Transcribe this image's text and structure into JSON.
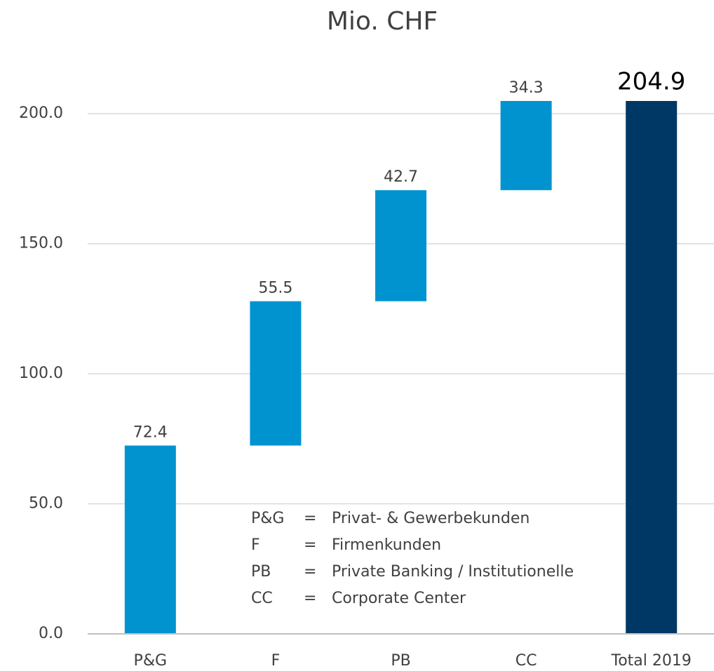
{
  "chart_data": {
    "type": "waterfall",
    "title": "Mio. CHF",
    "categories": [
      "P&G",
      "F",
      "PB",
      "CC",
      "Total 2019"
    ],
    "values": [
      72.4,
      55.5,
      42.7,
      34.3,
      204.9
    ],
    "measure": [
      "relative",
      "relative",
      "relative",
      "relative",
      "total"
    ],
    "color": "#0093d0",
    "total_color": "#003865",
    "ylim": [
      0,
      220
    ],
    "yticks": [
      {
        "value": 0,
        "label": "0.0"
      },
      {
        "value": 50,
        "label": "50.0"
      },
      {
        "value": 100,
        "label": "100.0"
      },
      {
        "value": 150,
        "label": "150.0"
      },
      {
        "value": 200,
        "label": "200.0"
      }
    ],
    "grid": true,
    "annotations": [
      {
        "abbr": "P&G",
        "eq": "=",
        "text": "Privat- & Gewerbekunden"
      },
      {
        "abbr": "F",
        "eq": "=",
        "text": "Firmenkunden"
      },
      {
        "abbr": "PB",
        "eq": "=",
        "text": "Private Banking / Institutionelle"
      },
      {
        "abbr": "CC",
        "eq": "=",
        "text": "Corporate Center"
      }
    ]
  }
}
